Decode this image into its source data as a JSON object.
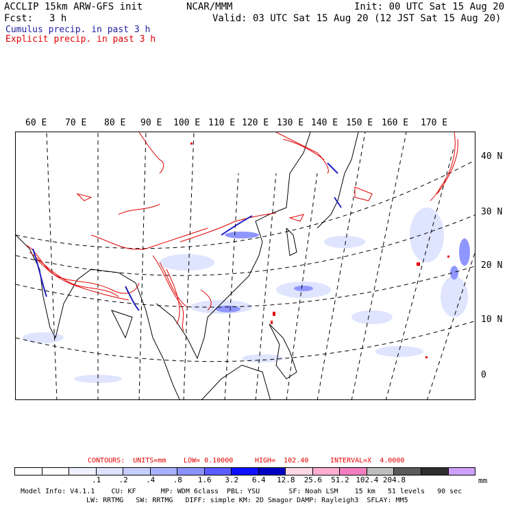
{
  "header": {
    "line1_left": "ACCLIP 15km ARW-GFS init",
    "line1_center": "NCAR/MMM",
    "line1_right": "Init: 00 UTC Sat 15 Aug 20",
    "fcst_label": "Fcst:",
    "fcst_value": "3 h",
    "valid": "Valid: 03 UTC Sat 15 Aug 20 (12 JST Sat 15 Aug 20)",
    "legend_cumulus": "Cumulus precip. in past 3 h",
    "legend_explicit": "Explicit precip. in past 3 h"
  },
  "colors": {
    "cumulus": "#2020c0",
    "explicit": "#e00000",
    "land_outline": "#000000"
  },
  "map": {
    "lon_labels": [
      "60 E",
      "70 E",
      "80 E",
      "90 E",
      "100 E",
      "110 E",
      "120 E",
      "130 E",
      "140 E",
      "150 E",
      "160 E",
      "170 E"
    ],
    "lat_labels": [
      "40 N",
      "30 N",
      "20 N",
      "10 N",
      "0"
    ]
  },
  "contours": {
    "units_label": "CONTOURS:  UNITS=mm",
    "low": "LOW= 0.10000",
    "high": "HIGH=  102.40",
    "interval": "INTERVAL=X  4.0000"
  },
  "colorbar": {
    "colors": [
      "#ffffff",
      "#ffffff",
      "#eef0ff",
      "#dde2ff",
      "#c6ceff",
      "#a7b2ff",
      "#8b92ff",
      "#5c5cff",
      "#1010ff",
      "#0000c0",
      "#ffd8e4",
      "#ffaed0",
      "#f47fbf",
      "#bdbdbd",
      "#5a5a5a",
      "#2e2e2e",
      "#d0a0ff"
    ],
    "ticks": [
      ".1",
      ".2",
      ".4",
      ".8",
      "1.6",
      "3.2",
      "6.4",
      "12.8",
      "25.6",
      "51.2",
      "102.4",
      "204.8"
    ],
    "unit": "mm"
  },
  "footer": {
    "line1": "Model Info: V4.1.1    CU: KF      MP: WDM 6class  PBL: YSU       SF: Noah LSM    15 km   51 levels   90 sec",
    "line2": "LW: RRTMG   SW: RRTMG   DIFF: simple KM: 2D Smagor DAMP: Rayleigh3  SFLAY: MM5"
  }
}
